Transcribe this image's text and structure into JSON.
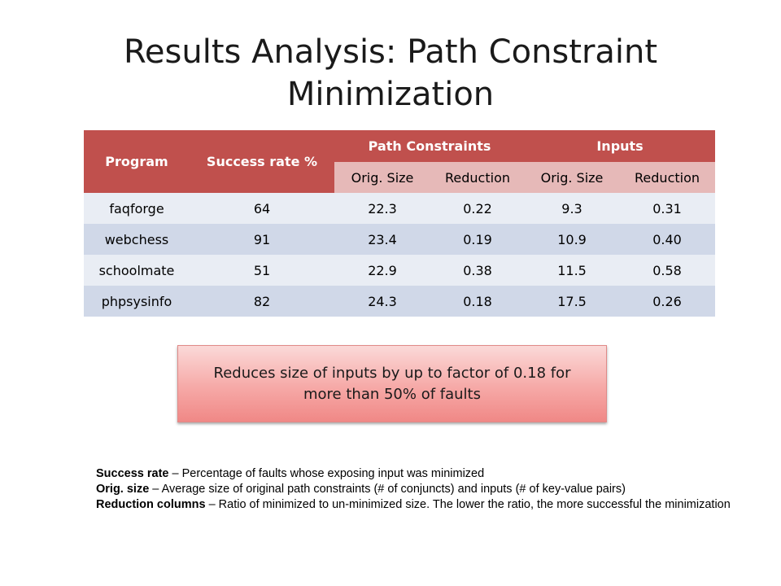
{
  "slide": {
    "title_line1": "Results Analysis: Path Constraint",
    "title_line2": "Minimization"
  },
  "table": {
    "headers": {
      "program": "Program",
      "success_rate": "Success rate %",
      "path_constraints": "Path Constraints",
      "inputs": "Inputs",
      "orig_size": "Orig. Size",
      "reduction": "Reduction"
    },
    "rows": [
      {
        "program": "faqforge",
        "success_rate": "64",
        "pc_orig_size": "22.3",
        "pc_reduction": "0.22",
        "in_orig_size": "9.3",
        "in_reduction": "0.31"
      },
      {
        "program": "webchess",
        "success_rate": "91",
        "pc_orig_size": "23.4",
        "pc_reduction": "0.19",
        "in_orig_size": "10.9",
        "in_reduction": "0.40"
      },
      {
        "program": "schoolmate",
        "success_rate": "51",
        "pc_orig_size": "22.9",
        "pc_reduction": "0.38",
        "in_orig_size": "11.5",
        "in_reduction": "0.58"
      },
      {
        "program": "phpsysinfo",
        "success_rate": "82",
        "pc_orig_size": "24.3",
        "pc_reduction": "0.18",
        "in_orig_size": "17.5",
        "in_reduction": "0.26"
      }
    ]
  },
  "callout": {
    "text": "Reduces size of inputs by up to factor of 0.18 for more than 50% of faults"
  },
  "notes": [
    {
      "term": "Success rate",
      "definition": " – Percentage of faults whose exposing input was minimized"
    },
    {
      "term": "Orig. size",
      "definition": " – Average size of original path constraints (# of conjuncts) and inputs (# of key-value pairs)"
    },
    {
      "term": "Reduction columns",
      "definition": " – Ratio of minimized to un-minimized size. The lower the ratio, the more successful the minimization"
    }
  ],
  "colors": {
    "header": "#c0504d",
    "subheader": "#e6b9b8",
    "row_light": "#e9edf4",
    "row_dark": "#d0d8e8"
  }
}
